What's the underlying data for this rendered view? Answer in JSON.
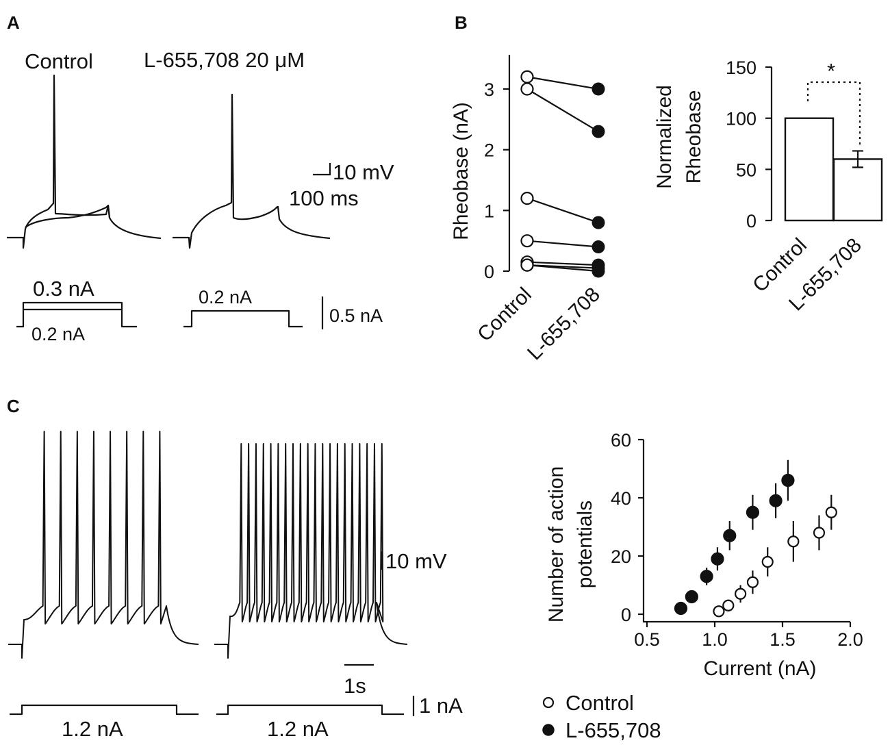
{
  "panels": {
    "a": "A",
    "b": "B",
    "c": "C"
  },
  "panel_a": {
    "control_label": "Control",
    "drug_label": "L-655,708 20 μM",
    "scale_voltage": "10 mV",
    "scale_time": "100 ms",
    "scale_current": "0.5 nA",
    "step_control_upper": "0.3 nA",
    "step_control_lower": "0.2 nA",
    "step_drug": "0.2 nA"
  },
  "panel_c_traces": {
    "scale_voltage": "10 mV",
    "scale_time": "1s",
    "scale_current": "1 nA",
    "step_control": "1.2 nA",
    "step_drug": "1.2 nA"
  },
  "chart_data": [
    {
      "type": "scatter",
      "title": "",
      "ylabel": "Rheobase (nA)",
      "categories": [
        "Control",
        "L-655,708"
      ],
      "ylim": [
        0,
        3.5
      ],
      "yticks": [
        0,
        1,
        2,
        3
      ],
      "paired": [
        [
          3.2,
          3.0
        ],
        [
          3.0,
          2.3
        ],
        [
          1.2,
          0.8
        ],
        [
          0.5,
          0.4
        ],
        [
          0.15,
          0.1
        ],
        [
          0.1,
          0.05
        ],
        [
          0.1,
          0.0
        ]
      ]
    },
    {
      "type": "bar",
      "title": "",
      "ylabel_lines": [
        "Normalized",
        "Rheobase"
      ],
      "categories": [
        "Control",
        "L-655,708"
      ],
      "values": [
        100,
        60
      ],
      "errors": [
        0,
        8
      ],
      "ylim": [
        0,
        150
      ],
      "yticks": [
        0,
        50,
        100,
        150
      ],
      "significance": "*"
    },
    {
      "type": "scatter",
      "title": "",
      "xlabel": "Current (nA)",
      "ylabel_lines": [
        "Number of action",
        "potentials"
      ],
      "xlim": [
        0.5,
        2.0
      ],
      "ylim": [
        0,
        60
      ],
      "xticks": [
        "0.5",
        "1.0",
        "1.5",
        "2.0"
      ],
      "yticks": [
        0,
        20,
        40,
        60
      ],
      "legend": "bottom",
      "series": [
        {
          "name": "Control",
          "marker": "open-circle",
          "x": [
            1.03,
            1.1,
            1.19,
            1.28,
            1.39,
            1.58,
            1.77,
            1.86
          ],
          "y": [
            1,
            3,
            7,
            11,
            18,
            25,
            28,
            35
          ],
          "err": [
            1,
            2,
            3,
            4,
            5,
            7,
            6,
            6
          ]
        },
        {
          "name": "L-655,708",
          "marker": "filled-circle",
          "x": [
            0.75,
            0.83,
            0.94,
            1.02,
            1.11,
            1.28,
            1.45,
            1.54
          ],
          "y": [
            2,
            6,
            13,
            19,
            27,
            35,
            39,
            46
          ],
          "err": [
            1,
            1,
            3,
            4,
            5,
            6,
            6,
            7
          ]
        }
      ]
    }
  ]
}
